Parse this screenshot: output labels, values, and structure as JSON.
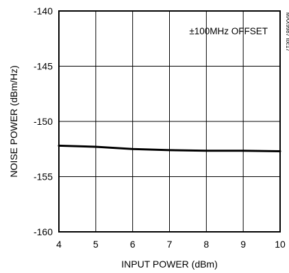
{
  "chart_data": {
    "type": "line",
    "xlabel": "INPUT POWER (dBm)",
    "ylabel": "NOISE POWER (dBm/Hz)",
    "xlim": [
      4,
      10
    ],
    "ylim": [
      -160,
      -140
    ],
    "xticks": [
      4,
      5,
      6,
      7,
      8,
      9,
      10
    ],
    "yticks": [
      -140,
      -145,
      -150,
      -155,
      -160
    ],
    "grid": true,
    "annotation": "±100MHz OFFSET",
    "figure_id": "MAX9987 toc17",
    "series": [
      {
        "x": [
          4,
          5,
          6,
          7,
          8,
          9,
          10
        ],
        "values": [
          -152.2,
          -152.3,
          -152.5,
          -152.6,
          -152.65,
          -152.65,
          -152.7
        ]
      }
    ]
  }
}
